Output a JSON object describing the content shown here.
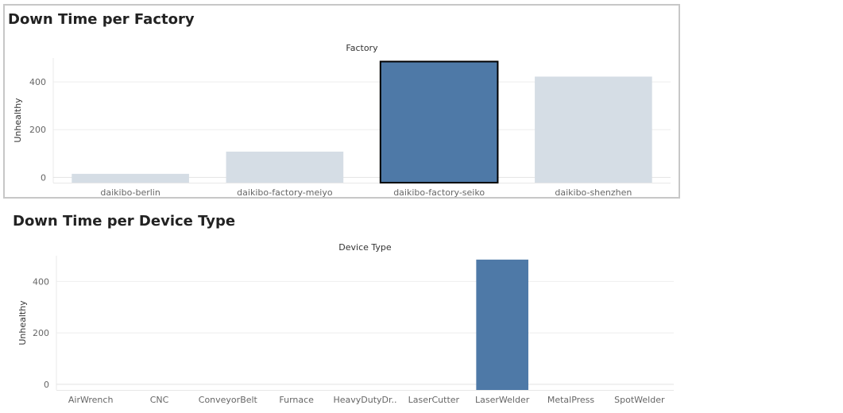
{
  "charts": [
    {
      "id": "factory",
      "title": "Down Time per Factory",
      "chart_data": {
        "type": "bar",
        "title": "Down Time per Factory",
        "xlabel": "Factory",
        "ylabel": "Unhealthy",
        "categories": [
          "daikibo-berlin",
          "daikibo-factory-meiyo",
          "daikibo-factory-seiko",
          "daikibo-shenzhen"
        ],
        "values": [
          15,
          108,
          485,
          422
        ],
        "yticks": [
          0,
          200,
          400
        ],
        "ylim": [
          -22,
          500
        ],
        "grid": true,
        "highlight_index": 2,
        "colors": {
          "highlight": "#4e79a7",
          "normal": "#d5dde5",
          "outline": "#000000"
        }
      }
    },
    {
      "id": "device",
      "title": "Down Time per Device Type",
      "chart_data": {
        "type": "bar",
        "title": "Down Time per Device Type",
        "xlabel": "Device Type",
        "ylabel": "Unhealthy",
        "categories": [
          "AirWrench",
          "CNC",
          "ConveyorBelt",
          "Furnace",
          "HeavyDutyDr..",
          "LaserCutter",
          "LaserWelder",
          "MetalPress",
          "SpotWelder"
        ],
        "values": [
          0,
          0,
          0,
          0,
          0,
          0,
          485,
          0,
          0
        ],
        "yticks": [
          0,
          200,
          400
        ],
        "ylim": [
          -22,
          500
        ],
        "grid": true,
        "colors": {
          "normal": "#4e79a7"
        }
      }
    }
  ]
}
